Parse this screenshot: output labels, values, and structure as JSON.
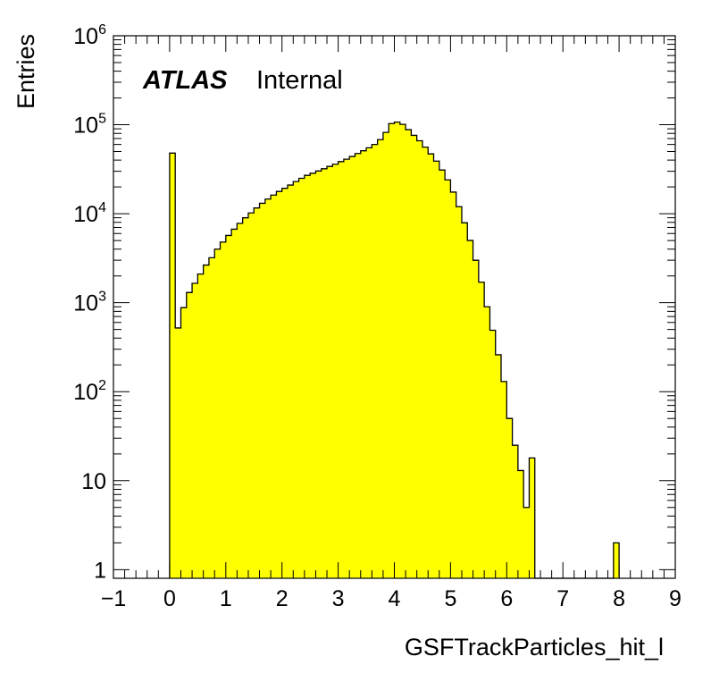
{
  "chart_data": {
    "type": "histogram",
    "xlabel": "GSFTrackParticles_hit_l",
    "ylabel": "Entries",
    "xlim": [
      -1,
      9
    ],
    "ylim": [
      0.8,
      1000000
    ],
    "yscale": "log",
    "x_ticks": [
      "−1",
      "0",
      "1",
      "2",
      "3",
      "4",
      "5",
      "6",
      "7",
      "8",
      "9"
    ],
    "y_ticks": [
      {
        "base": "1",
        "exp": ""
      },
      {
        "base": "10",
        "exp": ""
      },
      {
        "base": "10",
        "exp": "2"
      },
      {
        "base": "10",
        "exp": "3"
      },
      {
        "base": "10",
        "exp": "4"
      },
      {
        "base": "10",
        "exp": "5"
      },
      {
        "base": "10",
        "exp": "6"
      }
    ],
    "label_atlas": "ATLAS",
    "label_status": "Internal",
    "fill_color": "#ffff00",
    "line_color": "#000000",
    "bin_width": 0.1,
    "bin_starts": [
      0.0,
      0.1,
      0.2,
      0.3,
      0.4,
      0.5,
      0.6,
      0.7,
      0.8,
      0.9,
      1.0,
      1.1,
      1.2,
      1.3,
      1.4,
      1.5,
      1.6,
      1.7,
      1.8,
      1.9,
      2.0,
      2.1,
      2.2,
      2.3,
      2.4,
      2.5,
      2.6,
      2.7,
      2.8,
      2.9,
      3.0,
      3.1,
      3.2,
      3.3,
      3.4,
      3.5,
      3.6,
      3.7,
      3.8,
      3.9,
      4.0,
      4.1,
      4.2,
      4.3,
      4.4,
      4.5,
      4.6,
      4.7,
      4.8,
      4.9,
      5.0,
      5.1,
      5.2,
      5.3,
      5.4,
      5.5,
      5.6,
      5.7,
      5.8,
      5.9,
      6.0,
      6.1,
      6.2,
      6.3,
      6.4,
      6.5,
      6.6,
      6.7,
      6.8,
      6.9,
      7.0,
      7.1,
      7.2,
      7.3,
      7.4,
      7.5,
      7.6,
      7.7,
      7.8,
      7.9
    ],
    "counts": [
      48000,
      520,
      880,
      1300,
      1650,
      2100,
      2650,
      3200,
      4000,
      4800,
      5700,
      6700,
      7800,
      9000,
      10200,
      11600,
      13100,
      14600,
      16200,
      17800,
      19300,
      21000,
      23000,
      25000,
      27000,
      28500,
      30200,
      32000,
      34000,
      36000,
      38500,
      41000,
      44000,
      47500,
      51000,
      55000,
      60000,
      68000,
      82000,
      103000,
      107000,
      101000,
      88000,
      76000,
      66000,
      56000,
      47000,
      39000,
      31000,
      24000,
      17500,
      12000,
      7900,
      5000,
      3000,
      1700,
      900,
      490,
      260,
      130,
      50,
      25,
      13,
      5,
      18,
      0,
      0,
      0,
      0,
      0,
      0,
      0,
      0,
      0,
      0,
      0,
      0,
      0,
      0,
      2
    ]
  }
}
